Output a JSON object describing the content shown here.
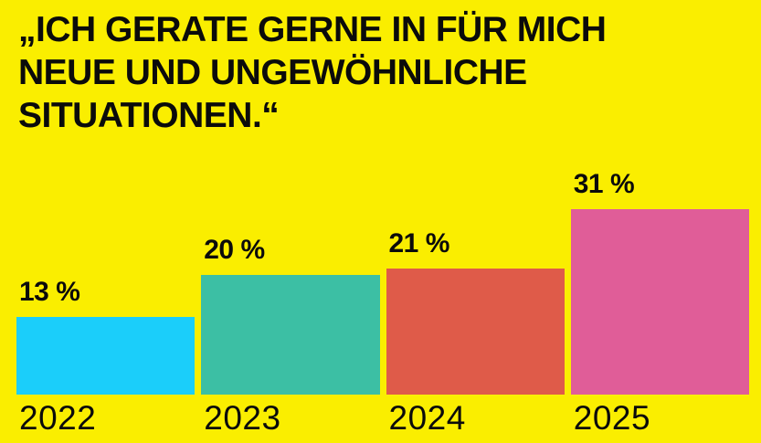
{
  "page": {
    "background_color": "#FAEE00",
    "text_color": "#0B0B0B"
  },
  "title": {
    "text": "„ICH GERATE GERNE IN FÜR MICH NEUE UND UNGEWÖHNLICHE SITUATIONEN.“",
    "lines": [
      "„ICH GERATE GERNE IN FÜR MICH",
      "NEUE UND UNGEWÖHNLICHE",
      "SITUATIONEN.“"
    ]
  },
  "chart_data": {
    "type": "bar",
    "title": "„ICH GERATE GERNE IN FÜR MICH NEUE UND UNGEWÖHNLICHE SITUATIONEN.“",
    "categories": [
      "2022",
      "2023",
      "2024",
      "2025"
    ],
    "values": [
      13,
      20,
      21,
      31
    ],
    "value_labels": [
      "13 %",
      "20 %",
      "21 %",
      "31 %"
    ],
    "unit": "%",
    "bar_colors": [
      "#1BCEFA",
      "#3CBFA4",
      "#DF5B49",
      "#E05D98"
    ],
    "xlabel": "",
    "ylabel": "",
    "ylim": [
      0,
      31
    ],
    "grid": false,
    "legend": false,
    "value_label_position": "above-bar",
    "background_color": "#FAEE00"
  }
}
